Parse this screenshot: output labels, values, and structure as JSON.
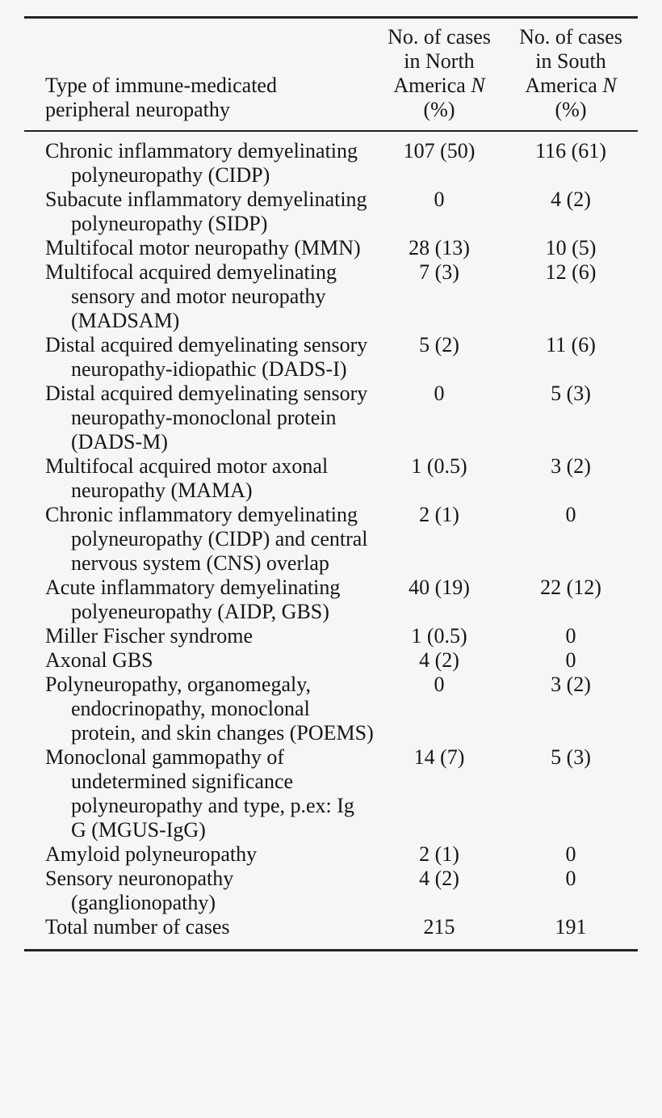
{
  "page": {
    "background_color": "#f6f6f5",
    "text_color": "#161616",
    "rule_color": "#232323"
  },
  "table": {
    "header": {
      "col1": {
        "line1": "Type of immune-medicated",
        "line2": "peripheral neuropathy"
      },
      "col2": {
        "line1": "No. of cases",
        "line2": "in North",
        "line3_text": "America",
        "line3_italic": "N",
        "line4": "(%)"
      },
      "col3": {
        "line1": "No. of cases",
        "line2": "in South",
        "line3_text": "America",
        "line3_italic": "N",
        "line4": "(%)"
      }
    },
    "rows": [
      {
        "label": "Chronic inflammatory demyelinating polyneuropathy (CIDP)",
        "north_america": "107 (50)",
        "south_america": "116 (61)"
      },
      {
        "label": "Subacute inflammatory demyelinating polyneuropathy (SIDP)",
        "north_america": "0",
        "south_america": "4 (2)"
      },
      {
        "label": "Multifocal motor neuropathy (MMN)",
        "north_america": "28 (13)",
        "south_america": "10 (5)"
      },
      {
        "label": "Multifocal acquired demyelinating sensory and motor neuropathy (MADSAM)",
        "north_america": "7 (3)",
        "south_america": "12 (6)"
      },
      {
        "label": "Distal acquired demyelinating sensory neuropathy-idiopathic (DADS-I)",
        "north_america": "5 (2)",
        "south_america": "11 (6)"
      },
      {
        "label": "Distal acquired demyelinating sensory neuropathy-monoclonal protein (DADS-M)",
        "north_america": "0",
        "south_america": "5 (3)"
      },
      {
        "label": "Multifocal acquired motor axonal neuropathy (MAMA)",
        "north_america": "1 (0.5)",
        "south_america": "3 (2)"
      },
      {
        "label": "Chronic inflammatory demyelinating polyneuropathy (CIDP) and central nervous system (CNS) overlap",
        "north_america": "2 (1)",
        "south_america": "0"
      },
      {
        "label": "Acute inflammatory demyelinating polyeneuropathy (AIDP, GBS)",
        "north_america": "40 (19)",
        "south_america": "22 (12)"
      },
      {
        "label": "Miller Fischer syndrome",
        "north_america": "1 (0.5)",
        "south_america": "0"
      },
      {
        "label": "Axonal GBS",
        "north_america": "4 (2)",
        "south_america": "0"
      },
      {
        "label": "Polyneuropathy, organomegaly, endocrinopathy, monoclonal protein, and skin changes (POEMS)",
        "north_america": "0",
        "south_america": "3 (2)"
      },
      {
        "label": "Monoclonal gammopathy of undetermined significance polyneuropathy and type, p.ex: Ig G (MGUS-IgG)",
        "north_america": "14 (7)",
        "south_america": "5 (3)"
      },
      {
        "label": "Amyloid polyneuropathy",
        "north_america": "2 (1)",
        "south_america": "0"
      },
      {
        "label": "Sensory neuronopathy (ganglionopathy)",
        "north_america": "4 (2)",
        "south_america": "0"
      },
      {
        "label": "Total number of cases",
        "north_america": "215",
        "south_america": "191"
      }
    ]
  }
}
